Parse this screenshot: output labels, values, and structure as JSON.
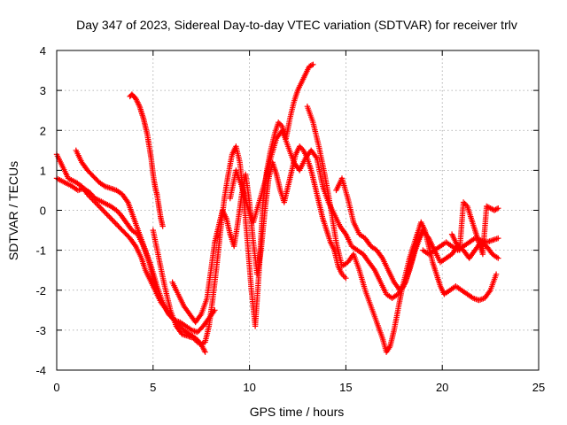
{
  "chart_data": {
    "type": "scatter",
    "title": "Day 347 of 2023, Sidereal Day-to-day VTEC variation (SDTVAR) for receiver trlv",
    "xlabel": "GPS time / hours",
    "ylabel": "SDTVAR / TECUs",
    "xlim": [
      0,
      25
    ],
    "ylim": [
      -4,
      4
    ],
    "xticks": [
      0,
      5,
      10,
      15,
      20,
      25
    ],
    "yticks": [
      -4,
      -3,
      -2,
      -1,
      0,
      1,
      2,
      3,
      4
    ],
    "xtick_labels": [
      "0",
      "5",
      "10",
      "15",
      "20",
      "25"
    ],
    "ytick_labels": [
      "-4",
      "-3",
      "-2",
      "-1",
      "0",
      "1",
      "2",
      "3",
      "4"
    ],
    "grid": true,
    "marker": "+",
    "color": "#ff0000",
    "series": [
      {
        "name": "track-1",
        "x": [
          0.0,
          0.3,
          0.6,
          1.0,
          1.3,
          1.6,
          2.0,
          2.4,
          2.8,
          3.2,
          3.5,
          3.8,
          4.1,
          4.4,
          4.6,
          4.9,
          5.1,
          5.4,
          5.7,
          6.0,
          6.3,
          6.6,
          6.9,
          7.2,
          7.4,
          7.6,
          7.7
        ],
        "y": [
          1.4,
          1.1,
          0.8,
          0.7,
          0.6,
          0.4,
          0.2,
          0.0,
          -0.2,
          -0.4,
          -0.55,
          -0.7,
          -0.9,
          -1.2,
          -1.5,
          -1.8,
          -2.0,
          -2.3,
          -2.5,
          -2.7,
          -2.85,
          -3.0,
          -3.1,
          -3.2,
          -3.3,
          -3.45,
          -3.55
        ]
      },
      {
        "name": "track-2",
        "x": [
          0.0,
          0.4,
          0.8,
          1.1,
          1.4,
          1.7,
          2.0,
          2.4,
          2.8,
          3.1,
          3.3,
          3.6,
          3.9,
          4.2,
          4.5,
          4.8,
          5.0,
          5.2
        ],
        "y": [
          0.8,
          0.7,
          0.6,
          0.5,
          0.55,
          0.45,
          0.3,
          0.2,
          0.1,
          0.0,
          -0.1,
          -0.3,
          -0.5,
          -0.6,
          -0.9,
          -1.3,
          -1.7,
          -2.0
        ]
      },
      {
        "name": "track-3",
        "x": [
          1.0,
          1.3,
          1.6,
          1.9,
          2.2,
          2.5,
          2.8,
          3.1,
          3.4,
          3.7,
          4.0,
          4.3,
          4.6,
          4.9,
          5.2,
          5.5,
          5.8,
          6.1,
          6.4,
          6.7,
          7.0,
          7.3,
          7.6,
          7.9,
          8.2
        ],
        "y": [
          1.5,
          1.2,
          1.0,
          0.85,
          0.7,
          0.6,
          0.55,
          0.5,
          0.4,
          0.2,
          -0.2,
          -0.6,
          -1.0,
          -1.4,
          -1.9,
          -2.3,
          -2.6,
          -2.75,
          -2.8,
          -2.9,
          -3.0,
          -3.05,
          -2.9,
          -2.7,
          -2.5
        ]
      },
      {
        "name": "track-4",
        "x": [
          3.8,
          3.9,
          4.0,
          4.1,
          4.2,
          4.3,
          4.4,
          4.5,
          4.6,
          4.7,
          4.8,
          4.9,
          5.0,
          5.1,
          5.2,
          5.3,
          5.4,
          5.5
        ],
        "y": [
          2.85,
          2.9,
          2.85,
          2.8,
          2.7,
          2.6,
          2.45,
          2.3,
          2.1,
          1.9,
          1.6,
          1.3,
          0.9,
          0.6,
          0.4,
          0.1,
          -0.2,
          -0.4
        ]
      },
      {
        "name": "track-5",
        "x": [
          5.0,
          5.3,
          5.6,
          5.9,
          6.2,
          6.5,
          6.8,
          7.1,
          7.3,
          7.5,
          7.7,
          7.9,
          8.1,
          8.3,
          8.5,
          8.7,
          8.9,
          9.1,
          9.3,
          9.5,
          9.7,
          9.9,
          10.1,
          10.3,
          10.5,
          10.7,
          10.9,
          11.1,
          11.3,
          11.5,
          11.7,
          11.9,
          12.1,
          12.3,
          12.5,
          12.7,
          12.9,
          13.1,
          13.3
        ],
        "y": [
          -0.5,
          -1.2,
          -1.9,
          -2.5,
          -2.9,
          -3.1,
          -3.15,
          -3.2,
          -3.3,
          -3.35,
          -3.3,
          -2.9,
          -2.2,
          -1.4,
          -0.5,
          0.3,
          0.9,
          1.4,
          1.6,
          1.2,
          0.3,
          -0.8,
          -2.0,
          -2.9,
          -1.5,
          0.2,
          1.0,
          1.5,
          1.9,
          2.2,
          2.1,
          1.8,
          2.3,
          2.7,
          3.0,
          3.2,
          3.4,
          3.6,
          3.65
        ]
      },
      {
        "name": "track-6",
        "x": [
          6.0,
          6.3,
          6.6,
          6.9,
          7.2,
          7.5,
          7.8,
          8.0,
          8.2,
          8.4,
          8.6,
          8.8,
          9.0,
          9.2,
          9.4,
          9.6,
          9.8,
          10.0,
          10.2,
          10.4,
          10.6,
          10.8,
          11.0,
          11.2,
          11.4,
          11.6,
          11.8,
          12.0,
          12.2,
          12.4,
          12.6,
          12.8,
          13.0,
          13.2,
          13.4,
          13.6,
          13.8,
          14.0,
          14.2,
          14.4,
          14.6,
          14.8,
          15.0
        ],
        "y": [
          -1.8,
          -2.1,
          -2.4,
          -2.6,
          -2.8,
          -2.6,
          -2.2,
          -1.5,
          -0.8,
          -0.4,
          0.0,
          -0.2,
          -0.6,
          -0.9,
          -0.3,
          0.4,
          0.9,
          0.2,
          -0.8,
          -1.6,
          -1.0,
          0.0,
          0.8,
          1.2,
          0.9,
          0.5,
          0.2,
          0.6,
          1.0,
          1.4,
          1.6,
          1.5,
          1.3,
          1.0,
          0.6,
          0.2,
          -0.2,
          -0.5,
          -0.8,
          -1.0,
          -1.4,
          -1.6,
          -1.7
        ]
      },
      {
        "name": "track-7",
        "x": [
          9.0,
          9.3,
          9.6,
          9.9,
          10.2,
          10.5,
          10.8,
          11.1,
          11.4,
          11.7,
          12.0,
          12.3,
          12.6,
          12.9,
          13.2,
          13.5,
          13.8,
          14.1,
          14.4,
          14.7,
          15.0,
          15.3,
          15.6,
          15.9,
          16.2,
          16.5,
          16.8,
          17.1,
          17.4,
          17.7,
          18.0,
          18.3,
          18.6,
          18.9
        ],
        "y": [
          0.3,
          1.0,
          0.6,
          0.1,
          -0.3,
          0.2,
          0.7,
          1.3,
          1.8,
          2.0,
          1.6,
          1.2,
          1.0,
          1.3,
          1.5,
          1.3,
          0.6,
          0.2,
          -0.1,
          -0.4,
          -0.6,
          -0.9,
          -1.0,
          -1.1,
          -1.3,
          -1.5,
          -1.8,
          -2.1,
          -2.2,
          -2.1,
          -1.9,
          -1.5,
          -1.0,
          -0.6
        ]
      },
      {
        "name": "track-8",
        "x": [
          13.0,
          13.3,
          13.6,
          13.9,
          14.2,
          14.5,
          14.8,
          15.1,
          15.4,
          15.7,
          16.0,
          16.3,
          16.6,
          16.9,
          17.1,
          17.3,
          17.5,
          17.7,
          17.9,
          18.1,
          18.3,
          18.5,
          18.7,
          18.9,
          19.1,
          19.3,
          19.5,
          19.7,
          19.9,
          20.1,
          20.4,
          20.7,
          21.0,
          21.3,
          21.6,
          21.9,
          22.2,
          22.5,
          22.8
        ],
        "y": [
          2.6,
          2.2,
          1.6,
          0.9,
          0.1,
          -0.8,
          -1.4,
          -1.3,
          -1.1,
          -1.5,
          -2.0,
          -2.4,
          -2.8,
          -3.2,
          -3.55,
          -3.4,
          -3.0,
          -2.5,
          -2.0,
          -1.6,
          -1.2,
          -0.9,
          -0.6,
          -0.3,
          -0.5,
          -0.9,
          -1.3,
          -1.6,
          -1.9,
          -2.1,
          -2.0,
          -1.9,
          -2.0,
          -2.1,
          -2.2,
          -2.25,
          -2.2,
          -2.0,
          -1.6
        ]
      },
      {
        "name": "track-9",
        "x": [
          14.5,
          14.8,
          15.1,
          15.4,
          15.7,
          16.0,
          16.3,
          16.6,
          16.9,
          17.2,
          17.5,
          17.8,
          18.1,
          18.4,
          18.7,
          19.0,
          19.3,
          19.6,
          19.9,
          20.2,
          20.5,
          20.8,
          21.1,
          21.4,
          21.7,
          22.0,
          22.3,
          22.6,
          22.9
        ],
        "y": [
          0.5,
          0.8,
          0.3,
          -0.3,
          -0.6,
          -0.7,
          -0.9,
          -1.0,
          -1.2,
          -1.5,
          -1.8,
          -2.0,
          -1.8,
          -1.3,
          -0.8,
          -0.5,
          -0.7,
          -1.0,
          -1.3,
          -1.2,
          -1.1,
          -0.9,
          -1.0,
          -1.2,
          -1.0,
          -0.8,
          -0.9,
          -1.1,
          -1.2
        ]
      },
      {
        "name": "track-10",
        "x": [
          19.0,
          19.3,
          19.6,
          19.9,
          20.2,
          20.5,
          20.8,
          21.1,
          21.4,
          21.7,
          22.0,
          22.3,
          22.6,
          22.9
        ],
        "y": [
          -1.0,
          -1.1,
          -1.0,
          -0.9,
          -0.8,
          -0.9,
          -1.0,
          -0.9,
          -0.8,
          -0.7,
          -0.75,
          -0.8,
          -0.75,
          -0.7
        ]
      },
      {
        "name": "track-11",
        "x": [
          20.5,
          20.7,
          20.9,
          21.1,
          21.3,
          21.5,
          21.7,
          21.9,
          22.1,
          22.3,
          22.5,
          22.7,
          22.9
        ],
        "y": [
          -0.6,
          -0.8,
          -1.0,
          0.2,
          0.1,
          -0.2,
          -0.5,
          -0.8,
          -1.1,
          0.1,
          0.05,
          0.0,
          0.05
        ]
      }
    ]
  }
}
